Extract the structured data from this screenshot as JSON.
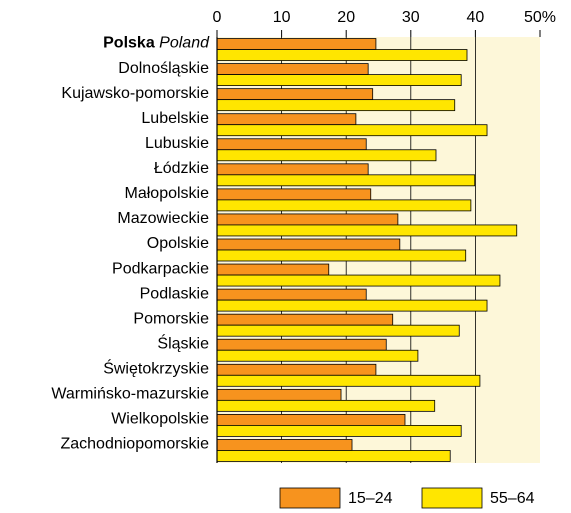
{
  "chart_data": {
    "type": "bar",
    "orientation": "horizontal",
    "categories": [
      "Polska",
      "Dolnośląskie",
      "Kujawsko-pomorskie",
      "Lubelskie",
      "Lubuskie",
      "Łódzkie",
      "Małopolskie",
      "Mazowieckie",
      "Opolskie",
      "Podkarpackie",
      "Podlaskie",
      "Pomorskie",
      "Śląskie",
      "Świętokrzyskie",
      "Warmińsko-mazurskie",
      "Wielkopolskie",
      "Zachodniopomorskie"
    ],
    "first_category_translation": "Poland",
    "series": [
      {
        "name": "15–24",
        "color": "#f7931e",
        "values": [
          24.6,
          23.4,
          24.1,
          21.5,
          23.1,
          23.4,
          23.8,
          28.0,
          28.3,
          17.3,
          23.1,
          27.2,
          26.2,
          24.6,
          19.2,
          29.1,
          20.9
        ]
      },
      {
        "name": "55–64",
        "color": "#ffe600",
        "values": [
          38.7,
          37.8,
          36.8,
          41.8,
          33.9,
          39.9,
          39.3,
          46.4,
          38.5,
          43.8,
          41.8,
          37.5,
          31.1,
          40.7,
          33.7,
          37.8,
          36.1
        ]
      }
    ],
    "xlim": [
      0,
      50
    ],
    "xticks": [
      0,
      10,
      20,
      30,
      40,
      {
        "value": 50,
        "label": "50%"
      }
    ],
    "grid": true,
    "background": "#fdf7d9"
  }
}
